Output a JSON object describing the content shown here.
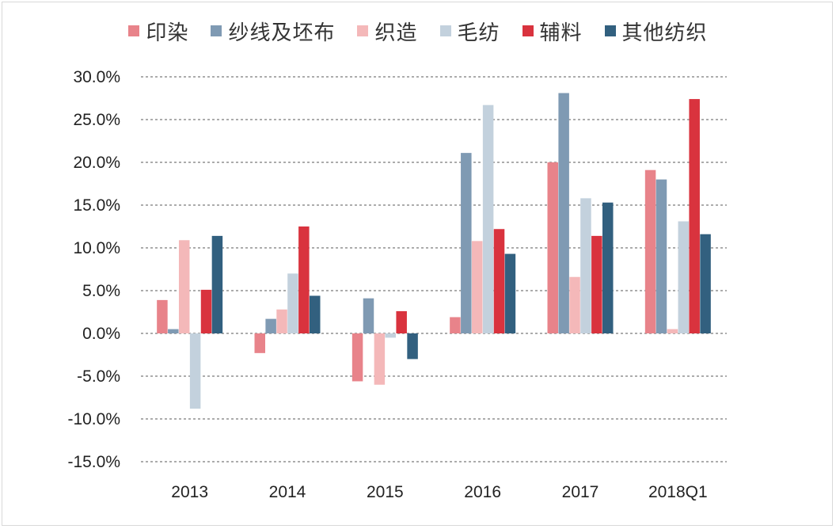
{
  "chart_data": {
    "type": "bar",
    "title": "",
    "xlabel": "",
    "ylabel": "",
    "categories": [
      "2013",
      "2014",
      "2015",
      "2016",
      "2017",
      "2018Q1"
    ],
    "ylim": [
      -15,
      30
    ],
    "yticks": [
      30,
      25,
      20,
      15,
      10,
      5,
      0,
      -5,
      -10,
      -15
    ],
    "ytick_labels": [
      "30.0%",
      "25.0%",
      "20.0%",
      "15.0%",
      "10.0%",
      "5.0%",
      "0.0%",
      "-5.0%",
      "-10.0%",
      "-15.0%"
    ],
    "grid": "horizontal-dashed",
    "legend_position": "top",
    "series": [
      {
        "name": "印染",
        "color": "#e8838a",
        "values": [
          3.9,
          -2.3,
          -5.6,
          1.9,
          20.0,
          19.1
        ]
      },
      {
        "name": "纱线及坯布",
        "color": "#7f9ab3",
        "values": [
          0.5,
          1.7,
          4.1,
          21.1,
          28.1,
          18.0
        ]
      },
      {
        "name": "织造",
        "color": "#f4b8b9",
        "values": [
          10.9,
          2.8,
          -6.0,
          10.8,
          6.6,
          0.5
        ]
      },
      {
        "name": "毛纺",
        "color": "#c3d1dd",
        "values": [
          -8.8,
          7.0,
          -0.5,
          26.7,
          15.8,
          13.1
        ]
      },
      {
        "name": "辅料",
        "color": "#d9333e",
        "values": [
          5.1,
          12.5,
          2.6,
          12.2,
          11.4,
          27.4
        ]
      },
      {
        "name": "其他纺织",
        "color": "#32607f",
        "values": [
          11.4,
          4.4,
          -3.0,
          9.3,
          15.3,
          11.6
        ]
      }
    ]
  }
}
